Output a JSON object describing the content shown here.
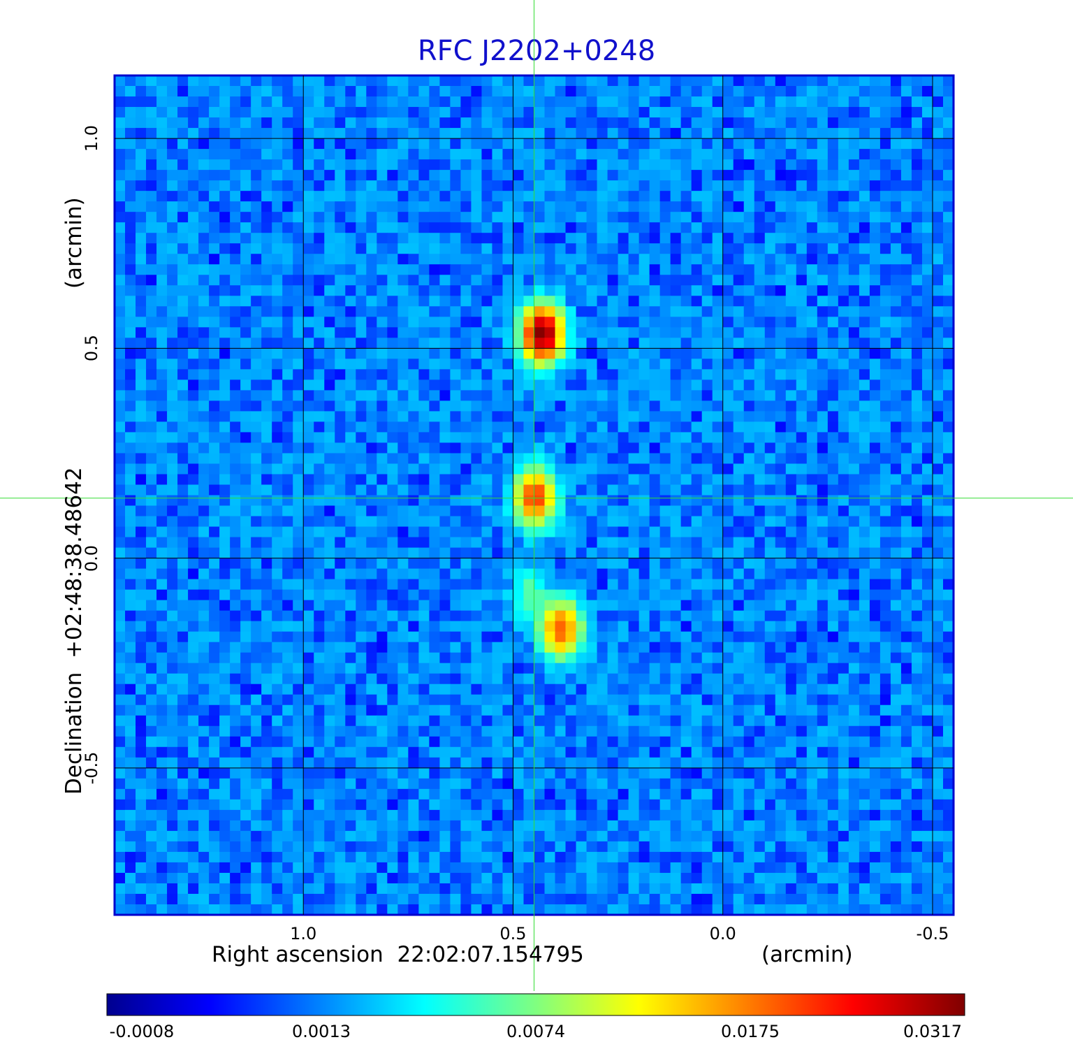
{
  "chart_data": {
    "type": "heatmap",
    "title": "RFC J2202+0248",
    "xlabel": "Right ascension  22:02:07.154795",
    "xunit": "(arcmin)",
    "ylabel": "Declination  +02:48:38.48642",
    "yunit": "(arcmin)",
    "xlim": [
      1.45,
      -0.55
    ],
    "ylim": [
      -0.85,
      1.15
    ],
    "x_ticks": [
      "1.0",
      "0.5",
      "0.0",
      "-0.5"
    ],
    "x_tick_values": [
      1.0,
      0.5,
      0.0,
      -0.5
    ],
    "y_ticks": [
      "1.0",
      "0.5",
      "0.0",
      "-0.5"
    ],
    "y_tick_values": [
      1.0,
      0.5,
      0.0,
      -0.5
    ],
    "grid": true,
    "colormap": "jet",
    "colorbar_ticks": [
      "-0.0008",
      "0.0013",
      "0.0074",
      "0.0175",
      "0.0317"
    ],
    "colorbar_range": [
      -0.0008,
      0.0317
    ],
    "crosshair": {
      "x": 0.45,
      "y": 0.143
    },
    "sources": [
      {
        "x": 0.43,
        "y": 0.535,
        "peak": 0.0317
      },
      {
        "x": 0.448,
        "y": 0.145,
        "peak": 0.02
      },
      {
        "x": 0.385,
        "y": -0.17,
        "peak": 0.018
      },
      {
        "x": 0.46,
        "y": -0.09,
        "peak": 0.004
      }
    ],
    "background_level": 0.0
  },
  "colors": {
    "title": "#1010cc",
    "grid": "#000000",
    "crosshair": "#33dd33"
  }
}
